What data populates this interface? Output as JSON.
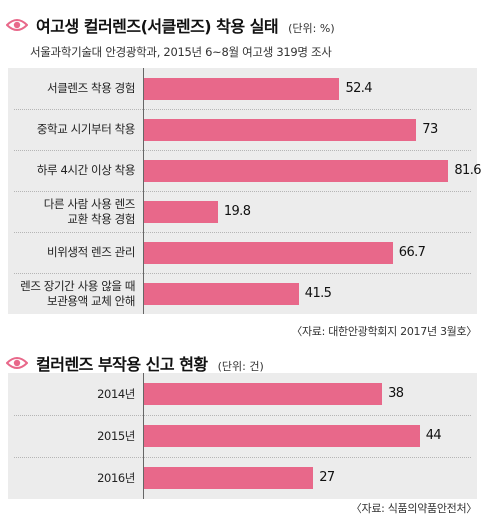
{
  "colors": {
    "bar": "#e8688a",
    "eye_icon": "#e8688a",
    "plot_background": "#ececec"
  },
  "chart_data": [
    {
      "type": "bar",
      "orientation": "horizontal",
      "icon": "eye-icon",
      "title": "여고생 컬러렌즈(서클렌즈) 착용 실태",
      "unit": "(단위: %)",
      "subtitle": "서울과학기술대 안경광학과, 2015년 6~8월 여고생 319명 조사",
      "source": "〈자료: 대한안광학회지 2017년 3월호〉",
      "categories": [
        "서클렌즈 착용 경험",
        "중학교 시기부터 착용",
        "하루 4시간 이상 착용",
        "다른 사람 사용 렌즈\n교환 착용 경험",
        "비위생적 렌즈 관리",
        "렌즈 장기간 사용 않을 때\n보관용액 교체 안해"
      ],
      "values": [
        52.4,
        73,
        81.6,
        19.8,
        66.7,
        41.5
      ],
      "value_labels": [
        "52.4",
        "73",
        "81.6",
        "19.8",
        "66.7",
        "41.5"
      ],
      "xlim": [
        0,
        100
      ],
      "grid": false,
      "legend": "none"
    },
    {
      "type": "bar",
      "orientation": "horizontal",
      "icon": "eye-icon",
      "title": "컬러렌즈 부작용 신고 현황",
      "unit": "(단위: 건)",
      "source": "〈자료: 식품의약품안전처〉",
      "categories": [
        "2014년",
        "2015년",
        "2016년"
      ],
      "values": [
        38,
        44,
        27
      ],
      "value_labels": [
        "38",
        "44",
        "27"
      ],
      "xlim": [
        0,
        60
      ],
      "grid": false,
      "legend": "none"
    }
  ]
}
